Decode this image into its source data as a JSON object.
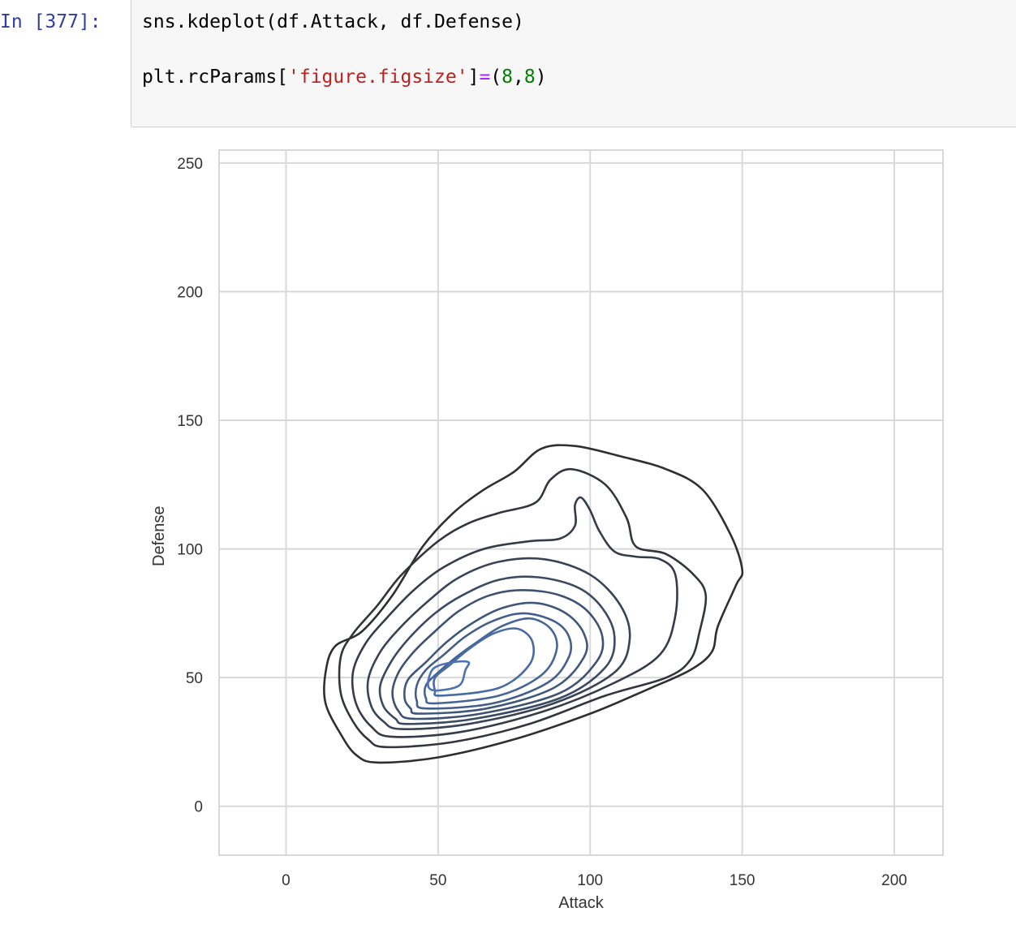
{
  "cell": {
    "prompt": "In [377]:",
    "line1": "sns.kdeplot(df.Attack, df.Defense)",
    "line2": {
      "prefix": "plt.rcParams[",
      "string": "'figure.figsize'",
      "close": "]",
      "op": "=",
      "open_paren": "(",
      "num1": "8",
      "comma": ",",
      "num2": "8",
      "close_paren": ")"
    }
  },
  "chart_data": {
    "type": "kde-contour",
    "xlabel": "Attack",
    "ylabel": "Defense",
    "xlim": [
      -22,
      216
    ],
    "ylim": [
      -19,
      255
    ],
    "xticks": [
      0,
      50,
      100,
      150,
      200
    ],
    "yticks": [
      0,
      50,
      100,
      150,
      200,
      250
    ],
    "grid": true,
    "colors": {
      "outer": "#2f2f2f",
      "inner": "#4c72b0",
      "grid": "#d8d8d8"
    },
    "contours": [
      {
        "level": 1,
        "points": [
          [
            30,
            17
          ],
          [
            50,
            19
          ],
          [
            75,
            26
          ],
          [
            100,
            36
          ],
          [
            120,
            46
          ],
          [
            133,
            53
          ],
          [
            140,
            60
          ],
          [
            142,
            70
          ],
          [
            148,
            86
          ],
          [
            150,
            92
          ],
          [
            146,
            106
          ],
          [
            137,
            123
          ],
          [
            125,
            131
          ],
          [
            110,
            136
          ],
          [
            95,
            140
          ],
          [
            84,
            139
          ],
          [
            75,
            130
          ],
          [
            65,
            123
          ],
          [
            55,
            114
          ],
          [
            45,
            101
          ],
          [
            35,
            82
          ],
          [
            25,
            68
          ],
          [
            16,
            62
          ],
          [
            13,
            52
          ],
          [
            13,
            40
          ],
          [
            18,
            28
          ],
          [
            23,
            20
          ]
        ]
      },
      {
        "level": 2,
        "points": [
          [
            33,
            23
          ],
          [
            55,
            25
          ],
          [
            80,
            32
          ],
          [
            105,
            43
          ],
          [
            125,
            50
          ],
          [
            133,
            57
          ],
          [
            136,
            68
          ],
          [
            138,
            82
          ],
          [
            134,
            90
          ],
          [
            125,
            98
          ],
          [
            115,
            101
          ],
          [
            112,
            112
          ],
          [
            105,
            125
          ],
          [
            94,
            131
          ],
          [
            87,
            127
          ],
          [
            82,
            118
          ],
          [
            70,
            114
          ],
          [
            60,
            110
          ],
          [
            50,
            103
          ],
          [
            38,
            90
          ],
          [
            30,
            78
          ],
          [
            22,
            67
          ],
          [
            18,
            58
          ],
          [
            18,
            44
          ],
          [
            22,
            33
          ],
          [
            27,
            26
          ]
        ]
      },
      {
        "level": 3,
        "points": [
          [
            35,
            27
          ],
          [
            58,
            29
          ],
          [
            85,
            37
          ],
          [
            108,
            48
          ],
          [
            123,
            59
          ],
          [
            128,
            74
          ],
          [
            128,
            90
          ],
          [
            123,
            96
          ],
          [
            115,
            97
          ],
          [
            108,
            99
          ],
          [
            103,
            107
          ],
          [
            100,
            115
          ],
          [
            97,
            120
          ],
          [
            95,
            117
          ],
          [
            95,
            109
          ],
          [
            90,
            104
          ],
          [
            80,
            103
          ],
          [
            65,
            100
          ],
          [
            52,
            93
          ],
          [
            42,
            84
          ],
          [
            33,
            73
          ],
          [
            26,
            63
          ],
          [
            22,
            52
          ],
          [
            23,
            40
          ],
          [
            28,
            31
          ]
        ]
      },
      {
        "level": 4,
        "points": [
          [
            38,
            30
          ],
          [
            60,
            32
          ],
          [
            88,
            40
          ],
          [
            108,
            52
          ],
          [
            113,
            65
          ],
          [
            110,
            78
          ],
          [
            100,
            90
          ],
          [
            85,
            96
          ],
          [
            70,
            95
          ],
          [
            57,
            89
          ],
          [
            47,
            80
          ],
          [
            38,
            70
          ],
          [
            31,
            60
          ],
          [
            27,
            49
          ],
          [
            28,
            39
          ],
          [
            32,
            33
          ]
        ]
      },
      {
        "level": 5,
        "points": [
          [
            40,
            32
          ],
          [
            62,
            34
          ],
          [
            90,
            42
          ],
          [
            105,
            54
          ],
          [
            108,
            66
          ],
          [
            104,
            77
          ],
          [
            96,
            85
          ],
          [
            83,
            89
          ],
          [
            70,
            88
          ],
          [
            58,
            82
          ],
          [
            49,
            75
          ],
          [
            41,
            66
          ],
          [
            35,
            57
          ],
          [
            31,
            47
          ],
          [
            32,
            39
          ],
          [
            36,
            34
          ]
        ]
      },
      {
        "level": 6,
        "points": [
          [
            42,
            34
          ],
          [
            64,
            36
          ],
          [
            90,
            44
          ],
          [
            102,
            56
          ],
          [
            104,
            66
          ],
          [
            99,
            76
          ],
          [
            90,
            82
          ],
          [
            78,
            84
          ],
          [
            67,
            82
          ],
          [
            57,
            76
          ],
          [
            49,
            68
          ],
          [
            42,
            60
          ],
          [
            37,
            52
          ],
          [
            35,
            44
          ],
          [
            37,
            37
          ]
        ]
      },
      {
        "level": 7,
        "points": [
          [
            44,
            36
          ],
          [
            66,
            38
          ],
          [
            88,
            46
          ],
          [
            98,
            58
          ],
          [
            98,
            67
          ],
          [
            92,
            75
          ],
          [
            82,
            79
          ],
          [
            71,
            77
          ],
          [
            61,
            71
          ],
          [
            53,
            64
          ],
          [
            46,
            56
          ],
          [
            40,
            49
          ],
          [
            39,
            42
          ],
          [
            41,
            38
          ]
        ]
      },
      {
        "level": 8,
        "points": [
          [
            46,
            38
          ],
          [
            68,
            40
          ],
          [
            86,
            48
          ],
          [
            93,
            58
          ],
          [
            93,
            66
          ],
          [
            88,
            72
          ],
          [
            78,
            75
          ],
          [
            68,
            72
          ],
          [
            59,
            66
          ],
          [
            52,
            59
          ],
          [
            46,
            53
          ],
          [
            43,
            47
          ],
          [
            43,
            41
          ]
        ]
      },
      {
        "level": 9,
        "points": [
          [
            49,
            40
          ],
          [
            70,
            43
          ],
          [
            84,
            51
          ],
          [
            89,
            61
          ],
          [
            87,
            69
          ],
          [
            80,
            73
          ],
          [
            71,
            70
          ],
          [
            63,
            64
          ],
          [
            56,
            58
          ],
          [
            50,
            52
          ],
          [
            46,
            47
          ],
          [
            46,
            42
          ]
        ]
      },
      {
        "level": 10,
        "points": [
          [
            51,
            43
          ],
          [
            70,
            46
          ],
          [
            80,
            55
          ],
          [
            81,
            64
          ],
          [
            76,
            69
          ],
          [
            68,
            67
          ],
          [
            60,
            61
          ],
          [
            54,
            55
          ],
          [
            49,
            50
          ],
          [
            49,
            45
          ]
        ]
      },
      {
        "level": 11,
        "points": [
          [
            50,
            45
          ],
          [
            57,
            47
          ],
          [
            59,
            53
          ],
          [
            60,
            56
          ],
          [
            55,
            56
          ],
          [
            49,
            54
          ],
          [
            47,
            50
          ],
          [
            47,
            46
          ]
        ]
      }
    ]
  }
}
